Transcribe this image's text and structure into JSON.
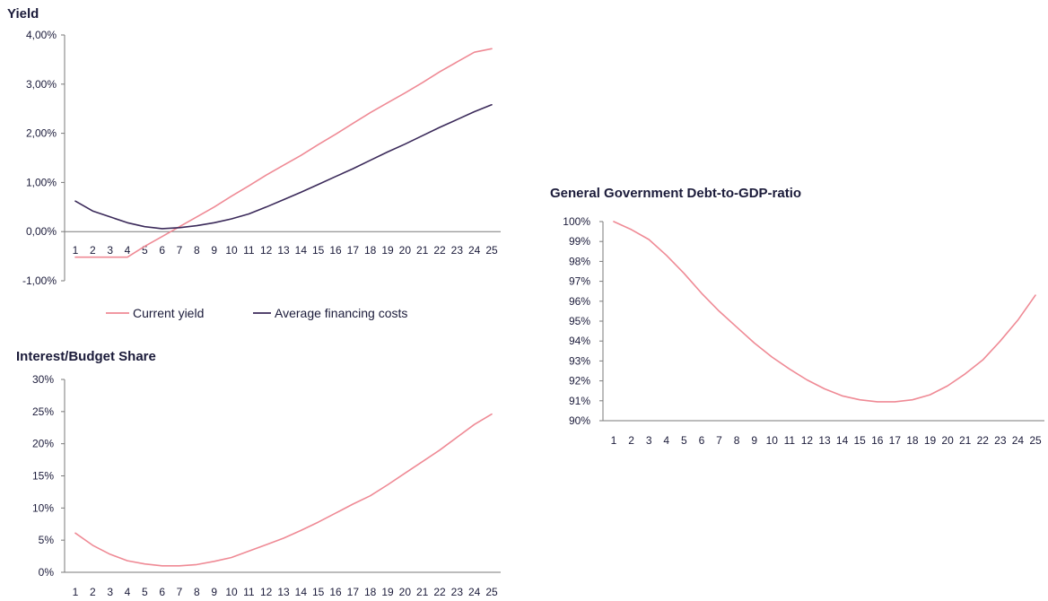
{
  "chart_data": [
    {
      "type": "line",
      "title": "Yield",
      "categories": [
        "1",
        "2",
        "3",
        "4",
        "5",
        "6",
        "7",
        "8",
        "9",
        "10",
        "11",
        "12",
        "13",
        "14",
        "15",
        "16",
        "17",
        "18",
        "19",
        "20",
        "21",
        "22",
        "23",
        "24",
        "25"
      ],
      "ylim": [
        -1,
        4
      ],
      "yticks": [
        -1,
        0,
        1,
        2,
        3,
        4
      ],
      "ytick_labels": [
        "-1,00%",
        "0,00%",
        "1,00%",
        "2,00%",
        "3,00%",
        "4,00%"
      ],
      "series": [
        {
          "name": "Current yield",
          "color": "#ef8a95",
          "values": [
            -0.52,
            -0.52,
            -0.52,
            -0.52,
            -0.3,
            -0.1,
            0.1,
            0.3,
            0.5,
            0.72,
            0.93,
            1.15,
            1.35,
            1.55,
            1.77,
            1.98,
            2.2,
            2.42,
            2.62,
            2.82,
            3.03,
            3.25,
            3.45,
            3.65,
            3.72
          ]
        },
        {
          "name": "Average financing costs",
          "color": "#3b2a5a",
          "values": [
            0.62,
            0.42,
            0.3,
            0.18,
            0.1,
            0.06,
            0.08,
            0.12,
            0.18,
            0.26,
            0.36,
            0.5,
            0.65,
            0.8,
            0.96,
            1.12,
            1.28,
            1.45,
            1.62,
            1.78,
            1.95,
            2.12,
            2.28,
            2.44,
            2.58
          ]
        }
      ],
      "legend": "bottom"
    },
    {
      "type": "line",
      "title": "Interest/Budget Share",
      "categories": [
        "1",
        "2",
        "3",
        "4",
        "5",
        "6",
        "7",
        "8",
        "9",
        "10",
        "11",
        "12",
        "13",
        "14",
        "15",
        "16",
        "17",
        "18",
        "19",
        "20",
        "21",
        "22",
        "23",
        "24",
        "25"
      ],
      "ylim": [
        0,
        30
      ],
      "yticks": [
        0,
        5,
        10,
        15,
        20,
        25,
        30
      ],
      "ytick_labels": [
        "0%",
        "5%",
        "10%",
        "15%",
        "20%",
        "25%",
        "30%"
      ],
      "series": [
        {
          "color": "#ef8a95",
          "values": [
            6.1,
            4.2,
            2.8,
            1.8,
            1.3,
            1.0,
            1.0,
            1.2,
            1.7,
            2.3,
            3.3,
            4.3,
            5.3,
            6.5,
            7.8,
            9.2,
            10.6,
            11.9,
            13.6,
            15.4,
            17.2,
            19.0,
            21.0,
            23.0,
            24.6
          ]
        }
      ]
    },
    {
      "type": "line",
      "title": "General Government Debt-to-GDP-ratio",
      "categories": [
        "1",
        "2",
        "3",
        "4",
        "5",
        "6",
        "7",
        "8",
        "9",
        "10",
        "11",
        "12",
        "13",
        "14",
        "15",
        "16",
        "17",
        "18",
        "19",
        "20",
        "21",
        "22",
        "23",
        "24",
        "25"
      ],
      "ylim": [
        90,
        100
      ],
      "yticks": [
        90,
        91,
        92,
        93,
        94,
        95,
        96,
        97,
        98,
        99,
        100
      ],
      "ytick_labels": [
        "90%",
        "91%",
        "92%",
        "93%",
        "94%",
        "95%",
        "96%",
        "97%",
        "98%",
        "99%",
        "100%"
      ],
      "series": [
        {
          "color": "#ef8a95",
          "values": [
            100.0,
            99.6,
            99.1,
            98.3,
            97.4,
            96.4,
            95.5,
            94.7,
            93.9,
            93.2,
            92.6,
            92.05,
            91.6,
            91.25,
            91.05,
            90.95,
            90.95,
            91.05,
            91.3,
            91.75,
            92.35,
            93.05,
            94.0,
            95.05,
            96.3
          ]
        }
      ]
    }
  ]
}
